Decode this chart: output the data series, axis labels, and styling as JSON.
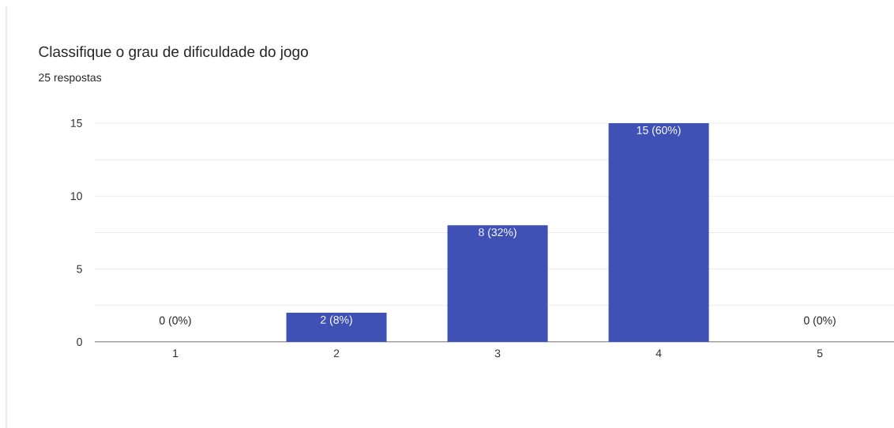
{
  "chart_data": {
    "type": "bar",
    "title": "Classifique o grau de dificuldade do jogo",
    "subtitle": "25 respostas",
    "categories": [
      "1",
      "2",
      "3",
      "4",
      "5"
    ],
    "values": [
      0,
      2,
      8,
      15,
      0
    ],
    "value_labels": [
      "0 (0%)",
      "2 (8%)",
      "8 (32%)",
      "15 (60%)",
      "0 (0%)"
    ],
    "color": "#3f51b5",
    "ylim": [
      0,
      15
    ],
    "yticks": [
      0,
      {
        "value": 2.5,
        "label": null
      },
      5,
      {
        "value": 7.5,
        "label": null
      },
      10,
      {
        "value": 12.5,
        "label": null
      },
      15
    ],
    "grid": "y"
  }
}
